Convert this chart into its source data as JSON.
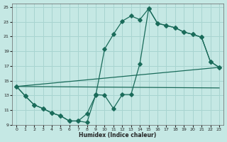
{
  "background_color": "#c5e8e4",
  "grid_color": "#a8d4d0",
  "line_color": "#1a6b5a",
  "xlabel": "Humidex (Indice chaleur)",
  "xlim": [
    -0.5,
    23.5
  ],
  "ylim": [
    9,
    25.5
  ],
  "yticks": [
    9,
    11,
    13,
    15,
    17,
    19,
    21,
    23,
    25
  ],
  "xticks": [
    0,
    1,
    2,
    3,
    4,
    5,
    6,
    7,
    8,
    9,
    10,
    11,
    12,
    13,
    14,
    15,
    16,
    17,
    18,
    19,
    20,
    21,
    22,
    23
  ],
  "line1_x": [
    0,
    1,
    2,
    3,
    4,
    5,
    6,
    7,
    8,
    9,
    10,
    11,
    12,
    13,
    14,
    15,
    16,
    17,
    18,
    19,
    20,
    21,
    22,
    23
  ],
  "line1_y": [
    14.2,
    12.9,
    11.7,
    11.2,
    10.6,
    10.2,
    9.5,
    9.5,
    10.5,
    13.0,
    19.3,
    21.3,
    23.1,
    23.8,
    23.3,
    24.8,
    22.8,
    22.5,
    22.2,
    21.6,
    21.3,
    20.9,
    17.6,
    16.8
  ],
  "line2_x": [
    0,
    1,
    2,
    3,
    4,
    5,
    6,
    7,
    8,
    9,
    10,
    11,
    12,
    13,
    14,
    15,
    16,
    17,
    18,
    19,
    20,
    21,
    22,
    23
  ],
  "line2_y": [
    14.2,
    12.9,
    11.7,
    11.2,
    10.6,
    10.2,
    9.5,
    9.5,
    9.3,
    13.1,
    13.0,
    11.2,
    13.1,
    13.1,
    17.3,
    24.8,
    22.8,
    22.5,
    22.2,
    21.6,
    21.3,
    20.9,
    17.6,
    16.8
  ],
  "line3_x": [
    0,
    23
  ],
  "line3_y": [
    14.2,
    16.8
  ],
  "line4_x": [
    0,
    23
  ],
  "line4_y": [
    14.2,
    14.0
  ]
}
